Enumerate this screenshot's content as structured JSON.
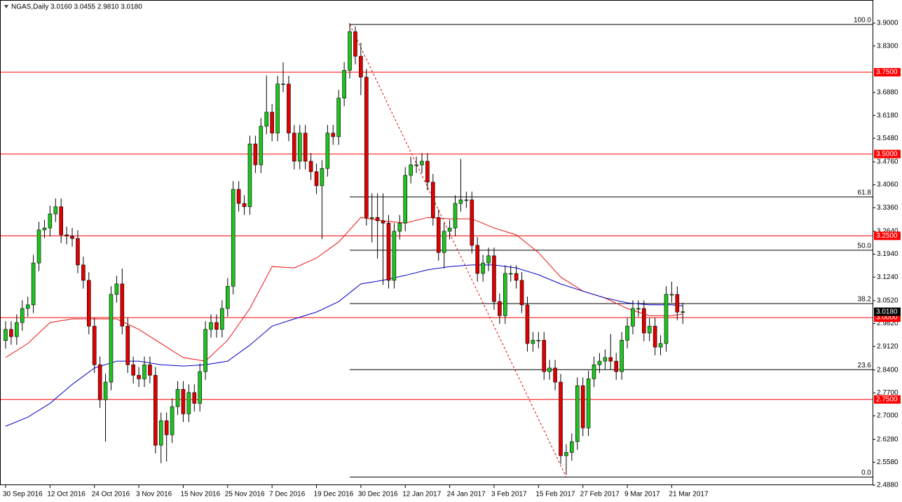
{
  "chart_data": {
    "type": "candlestick",
    "title": "NGAS,Daily  3.0160 3.0455 2.9810 3.0180",
    "categories": [
      "30 Sep 2016",
      null,
      null,
      null,
      null,
      null,
      null,
      null,
      "12 Oct 2016",
      null,
      null,
      null,
      null,
      null,
      null,
      null,
      "24 Oct 2016",
      null,
      null,
      null,
      null,
      null,
      null,
      null,
      "3 Nov 2016",
      null,
      null,
      null,
      null,
      null,
      null,
      null,
      "15 Nov 2016",
      null,
      null,
      null,
      null,
      null,
      null,
      null,
      "25 Nov 2016",
      null,
      null,
      null,
      null,
      null,
      null,
      null,
      "7 Dec 2016",
      null,
      null,
      null,
      null,
      null,
      null,
      null,
      "19 Dec 2016",
      null,
      null,
      null,
      null,
      null,
      null,
      null,
      "30 Dec 2016",
      null,
      null,
      null,
      null,
      null,
      null,
      null,
      "12 Jan 2017",
      null,
      null,
      null,
      null,
      null,
      null,
      null,
      "24 Jan 2017",
      null,
      null,
      null,
      null,
      null,
      null,
      null,
      "3 Feb 2017",
      null,
      null,
      null,
      null,
      null,
      null,
      null,
      "15 Feb 2017",
      null,
      null,
      null,
      null,
      null,
      null,
      null,
      "27 Feb 2017",
      null,
      null,
      null,
      null,
      null,
      null,
      null,
      "9 Mar 2017",
      null,
      null,
      null,
      null,
      null,
      null,
      null,
      "21 Mar 2017",
      null,
      null
    ],
    "open": [
      2.93,
      2.964,
      2.942,
      2.985,
      3.028,
      3.039,
      3.167,
      3.268,
      3.274,
      3.317,
      3.339,
      3.253,
      3.249,
      3.242,
      3.161,
      3.114,
      2.974,
      2.856,
      2.749,
      2.803,
      3.071,
      3.103,
      2.974,
      2.856,
      2.824,
      2.813,
      2.856,
      2.824,
      2.61,
      2.685,
      2.642,
      2.728,
      2.781,
      2.706,
      2.771,
      2.738,
      2.835,
      2.964,
      2.985,
      2.964,
      3.028,
      3.096,
      3.392,
      3.349,
      3.339,
      3.531,
      3.467,
      3.585,
      3.628,
      3.564,
      3.714,
      3.714,
      3.564,
      3.478,
      3.564,
      3.478,
      3.446,
      3.403,
      3.456,
      3.564,
      3.553,
      3.671,
      3.756,
      3.874,
      3.799,
      3.735,
      3.306,
      3.306,
      3.296,
      3.289,
      3.114,
      3.264,
      3.289,
      3.435,
      3.467,
      3.467,
      3.478,
      3.414,
      3.306,
      3.199,
      3.264,
      3.274,
      3.349,
      3.36,
      3.36,
      3.221,
      3.135,
      3.167,
      3.189,
      3.049,
      3.006,
      3.135,
      3.135,
      3.114,
      3.039,
      2.921,
      2.931,
      2.931,
      2.835,
      2.846,
      2.803,
      2.578,
      2.588,
      2.621,
      2.792,
      2.663,
      2.813,
      2.856,
      2.867,
      2.878,
      2.867,
      2.835,
      2.931,
      2.974,
      3.028,
      3.028,
      2.953,
      2.974,
      2.91,
      2.921,
      3.071,
      3.071,
      3.016
    ],
    "high": [
      2.989,
      2.989,
      3.01,
      3.053,
      3.064,
      3.192,
      3.293,
      3.299,
      3.342,
      3.364,
      3.364,
      3.278,
      3.274,
      3.267,
      3.186,
      3.139,
      2.999,
      2.881,
      2.828,
      3.096,
      3.128,
      3.15,
      2.999,
      2.881,
      2.849,
      2.881,
      2.881,
      2.849,
      2.71,
      2.71,
      2.753,
      2.806,
      2.806,
      2.796,
      2.796,
      2.86,
      2.989,
      3.01,
      3.01,
      3.053,
      3.121,
      3.417,
      3.417,
      3.374,
      3.556,
      3.556,
      3.61,
      3.74,
      3.653,
      3.739,
      3.78,
      3.739,
      3.589,
      3.589,
      3.589,
      3.503,
      3.471,
      3.481,
      3.589,
      3.589,
      3.696,
      3.781,
      3.9,
      3.89,
      3.84,
      3.76,
      3.38,
      3.38,
      3.38,
      3.314,
      3.289,
      3.314,
      3.46,
      3.492,
      3.492,
      3.503,
      3.503,
      3.439,
      3.331,
      3.289,
      3.299,
      3.374,
      3.485,
      3.385,
      3.385,
      3.246,
      3.192,
      3.214,
      3.214,
      3.074,
      3.16,
      3.16,
      3.16,
      3.139,
      3.064,
      2.956,
      2.956,
      2.956,
      2.871,
      2.871,
      2.828,
      2.613,
      2.646,
      2.817,
      2.817,
      2.838,
      2.881,
      2.892,
      2.903,
      2.95,
      2.892,
      2.956,
      2.999,
      3.053,
      3.053,
      3.053,
      2.999,
      2.999,
      2.946,
      3.096,
      3.11,
      3.096,
      3.0455
    ],
    "low": [
      2.905,
      2.917,
      2.917,
      2.96,
      3.003,
      3.014,
      3.142,
      3.243,
      3.249,
      3.292,
      3.228,
      3.224,
      3.217,
      3.136,
      3.089,
      2.949,
      2.831,
      2.724,
      2.621,
      2.778,
      3.046,
      2.949,
      2.831,
      2.799,
      2.788,
      2.788,
      2.799,
      2.585,
      2.555,
      2.56,
      2.617,
      2.703,
      2.681,
      2.681,
      2.713,
      2.713,
      2.81,
      2.939,
      2.939,
      2.939,
      3.003,
      3.071,
      3.324,
      3.314,
      3.314,
      3.442,
      3.442,
      3.56,
      3.539,
      3.539,
      3.689,
      3.539,
      3.453,
      3.453,
      3.453,
      3.421,
      3.378,
      3.24,
      3.431,
      3.528,
      3.528,
      3.646,
      3.731,
      3.774,
      3.68,
      3.281,
      3.23,
      3.18,
      3.1,
      3.089,
      3.089,
      3.239,
      3.264,
      3.41,
      3.442,
      3.442,
      3.389,
      3.281,
      3.174,
      3.15,
      3.239,
      3.249,
      3.324,
      3.335,
      3.196,
      3.11,
      3.11,
      3.142,
      3.024,
      2.981,
      2.981,
      3.11,
      3.089,
      3.014,
      2.896,
      2.896,
      2.906,
      2.81,
      2.81,
      2.778,
      2.553,
      2.52,
      2.563,
      2.596,
      2.638,
      2.638,
      2.788,
      2.831,
      2.842,
      2.842,
      2.81,
      2.81,
      2.906,
      2.949,
      3.003,
      2.928,
      2.928,
      2.885,
      2.885,
      2.896,
      3.046,
      2.992,
      2.981
    ],
    "close": [
      2.964,
      2.942,
      2.985,
      3.028,
      3.039,
      3.167,
      3.268,
      3.274,
      3.317,
      3.339,
      3.253,
      3.249,
      3.242,
      3.161,
      3.114,
      2.974,
      2.856,
      2.749,
      2.803,
      3.071,
      3.103,
      2.974,
      2.856,
      2.824,
      2.813,
      2.856,
      2.824,
      2.61,
      2.685,
      2.642,
      2.728,
      2.781,
      2.706,
      2.771,
      2.738,
      2.835,
      2.964,
      2.985,
      2.964,
      3.028,
      3.096,
      3.392,
      3.349,
      3.339,
      3.531,
      3.467,
      3.585,
      3.628,
      3.564,
      3.714,
      3.714,
      3.564,
      3.478,
      3.564,
      3.478,
      3.446,
      3.403,
      3.456,
      3.564,
      3.553,
      3.671,
      3.756,
      3.874,
      3.799,
      3.735,
      3.306,
      3.306,
      3.296,
      3.289,
      3.114,
      3.264,
      3.289,
      3.435,
      3.467,
      3.467,
      3.478,
      3.414,
      3.306,
      3.199,
      3.264,
      3.274,
      3.349,
      3.36,
      3.36,
      3.221,
      3.135,
      3.167,
      3.189,
      3.049,
      3.006,
      3.135,
      3.135,
      3.114,
      3.039,
      2.921,
      2.931,
      2.931,
      2.835,
      2.846,
      2.803,
      2.578,
      2.588,
      2.621,
      2.792,
      2.663,
      2.813,
      2.856,
      2.867,
      2.878,
      2.867,
      2.835,
      2.931,
      2.974,
      3.028,
      3.028,
      2.953,
      2.974,
      2.91,
      2.921,
      3.071,
      3.071,
      3.017,
      3.018
    ],
    "up_color": "#1fc31f",
    "down_color": "#e00000",
    "ylim": [
      2.488,
      3.96
    ],
    "yticks": [
      {
        "value": 3.9,
        "label": "3.9000"
      },
      {
        "value": 3.83,
        "label": "3.8300"
      },
      {
        "value": 3.688,
        "label": "3.6880"
      },
      {
        "value": 3.618,
        "label": "3.6180"
      },
      {
        "value": 3.548,
        "label": "3.5480"
      },
      {
        "value": 3.476,
        "label": "3.4760"
      },
      {
        "value": 3.406,
        "label": "3.4060"
      },
      {
        "value": 3.336,
        "label": "3.3360"
      },
      {
        "value": 3.264,
        "label": "3.2640"
      },
      {
        "value": 3.194,
        "label": "3.1940"
      },
      {
        "value": 3.124,
        "label": "3.1240"
      },
      {
        "value": 3.052,
        "label": "3.0520"
      },
      {
        "value": 2.982,
        "label": "2.9820"
      },
      {
        "value": 2.912,
        "label": "2.9120"
      },
      {
        "value": 2.84,
        "label": "2.8400"
      },
      {
        "value": 2.77,
        "label": "2.7700"
      },
      {
        "value": 2.7,
        "label": "2.7000"
      },
      {
        "value": 2.628,
        "label": "2.6280"
      },
      {
        "value": 2.558,
        "label": "2.5580"
      },
      {
        "value": 2.488,
        "label": "2.4880"
      }
    ],
    "levels": [
      {
        "value": 3.75,
        "label": "3.7500"
      },
      {
        "value": 3.5,
        "label": "3.5000"
      },
      {
        "value": 3.25,
        "label": "3.2500"
      },
      {
        "value": 3.0,
        "label": "3.0000"
      },
      {
        "value": 2.75,
        "label": "2.7500"
      }
    ],
    "level_color": "#ff0000",
    "last_price": {
      "value": 3.018,
      "label": "3.0180"
    },
    "fibo": {
      "from": [
        62,
        3.896
      ],
      "to": [
        101,
        2.513
      ],
      "levels": [
        {
          "label": "100.0",
          "price": 3.896
        },
        {
          "label": "61.8",
          "price": 3.369
        },
        {
          "label": "50.0",
          "price": 3.206
        },
        {
          "label": "38.2",
          "price": 3.043
        },
        {
          "label": "23.6",
          "price": 2.841
        },
        {
          "label": "0.0",
          "price": 2.513
        }
      ]
    },
    "moving_averages": [
      {
        "color": "#ee1111",
        "x": [
          0,
          4,
          8,
          12,
          16,
          20,
          24,
          28,
          32,
          36,
          40,
          44,
          48,
          52,
          56,
          60,
          64,
          68,
          72,
          76,
          80,
          84,
          88,
          92,
          96,
          100,
          104,
          108,
          112,
          116,
          120,
          122
        ],
        "values": [
          2.878,
          2.921,
          2.985,
          2.996,
          2.996,
          2.996,
          2.964,
          2.921,
          2.878,
          2.867,
          2.931,
          3.028,
          3.156,
          3.152,
          3.182,
          3.231,
          3.306,
          3.296,
          3.289,
          3.306,
          3.302,
          3.302,
          3.274,
          3.253,
          3.199,
          3.124,
          3.081,
          3.06,
          3.028,
          3.006,
          3.006,
          3.011
        ]
      },
      {
        "color": "#0000cc",
        "x": [
          0,
          4,
          8,
          12,
          16,
          20,
          24,
          28,
          32,
          36,
          40,
          44,
          48,
          52,
          56,
          60,
          64,
          68,
          72,
          76,
          80,
          84,
          88,
          92,
          96,
          100,
          104,
          108,
          112,
          116,
          120,
          122
        ],
        "values": [
          2.668,
          2.696,
          2.738,
          2.796,
          2.846,
          2.867,
          2.867,
          2.856,
          2.852,
          2.856,
          2.867,
          2.916,
          2.974,
          2.996,
          3.017,
          3.049,
          3.103,
          3.114,
          3.129,
          3.146,
          3.156,
          3.161,
          3.161,
          3.152,
          3.131,
          3.103,
          3.081,
          3.06,
          3.045,
          3.039,
          3.039,
          3.036
        ]
      }
    ]
  }
}
